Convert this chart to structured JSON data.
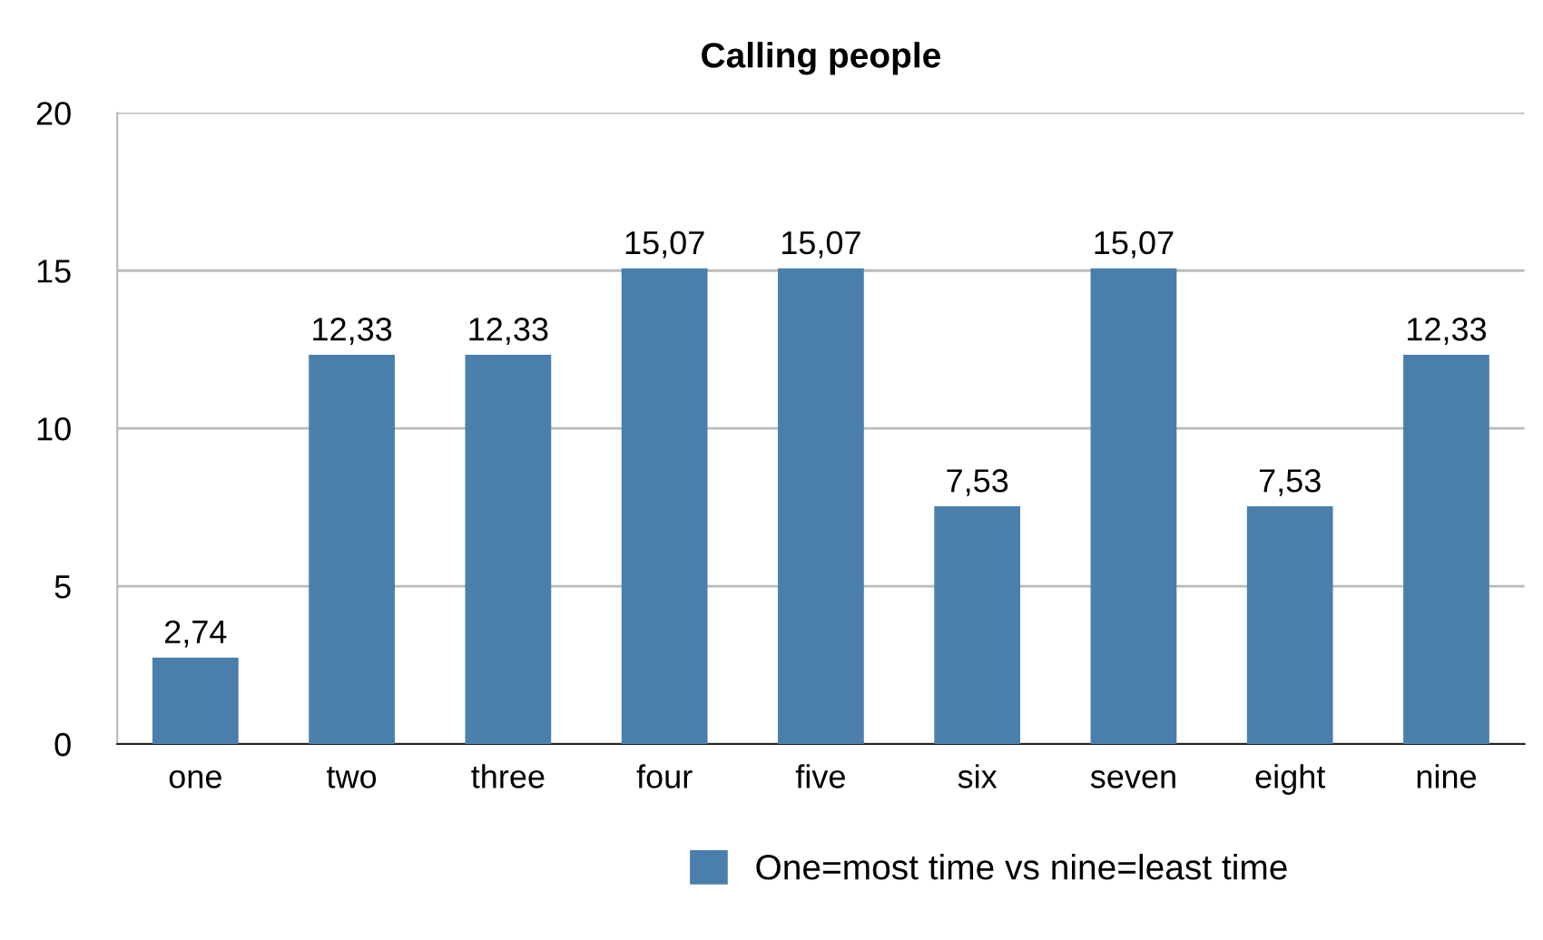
{
  "chart_data": {
    "type": "bar",
    "title": "Calling people",
    "categories": [
      "one",
      "two",
      "three",
      "four",
      "five",
      "six",
      "seven",
      "eight",
      "nine"
    ],
    "series": [
      {
        "name": "One=most time vs nine=least time",
        "color": "#4a7fab",
        "values": [
          2.74,
          12.33,
          12.33,
          15.07,
          15.07,
          7.53,
          15.07,
          7.53,
          12.33
        ],
        "value_labels": [
          "2,74",
          "12,33",
          "12,33",
          "15,07",
          "15,07",
          "7,53",
          "15,07",
          "7,53",
          "12,33"
        ]
      }
    ],
    "ylim": [
      0,
      20
    ],
    "yticks": [
      0,
      5,
      10,
      15,
      20
    ],
    "grid": "y",
    "legend": "bottom"
  }
}
